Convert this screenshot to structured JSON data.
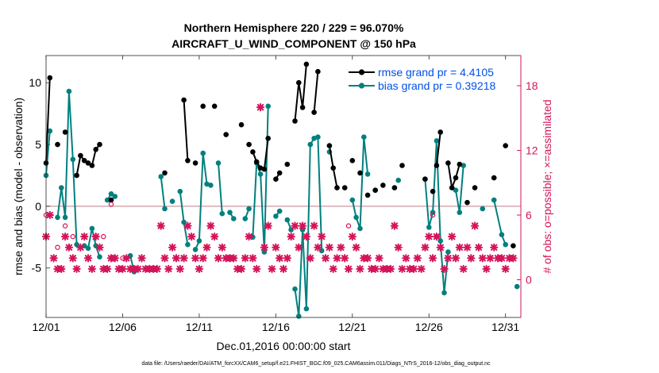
{
  "chart_data": {
    "type": "line",
    "title": "Northern Hemisphere 220 / 229 = 96.070%",
    "subtitle": "AIRCRAFT_U_WIND_COMPONENT @ 150 hPa",
    "xlabel": "Dec.01,2016 00:00:00 start",
    "ylabel": "rmse and bias (model - observation)",
    "y2label": "# of obs: o=possible; ×=assimilated",
    "footer": "data file: /Users/raeder/DAI/ATM_forcXX/CAM6_setup/f.e21.FHIST_BGC.f09_025.CAM6assim.011/Diags_NTrS_2016-12/obs_diag_output.nc",
    "xlim": [
      1,
      32
    ],
    "ylim": [
      -9,
      12.2
    ],
    "y2lim": [
      -3.5,
      20.8
    ],
    "x_ticks": [
      1,
      6,
      11,
      16,
      21,
      26,
      31
    ],
    "x_tick_labels": [
      "12/01",
      "12/06",
      "12/11",
      "12/16",
      "12/21",
      "12/26",
      "12/31"
    ],
    "y_ticks": [
      -5,
      0,
      5,
      10
    ],
    "y2_ticks": [
      0,
      6,
      12,
      18
    ],
    "zero_line": 0,
    "grid": false,
    "legend_position": "top-right",
    "colors": {
      "rmse": "#000000",
      "bias": "#00807f",
      "obs": "#d4145a",
      "zero": "#d4aab0",
      "legend_text": "#0050e8"
    },
    "series": [
      {
        "name": "rmse grand pr = 4.4105",
        "segments": [
          [
            [
              1.0,
              3.5
            ],
            [
              1.25,
              10.4
            ]
          ],
          [
            [
              1.75,
              5.0
            ]
          ],
          [
            [
              2.25,
              6.0
            ]
          ],
          [
            [
              3.0,
              2.5
            ],
            [
              3.25,
              4.1
            ],
            [
              3.5,
              3.7
            ],
            [
              3.75,
              3.5
            ],
            [
              4.0,
              3.3
            ],
            [
              4.25,
              4.6
            ],
            [
              4.5,
              5.0
            ]
          ],
          [
            [
              5.25,
              0.5
            ]
          ],
          [
            [
              8.75,
              2.7
            ]
          ],
          [
            [
              10.0,
              8.6
            ],
            [
              10.25,
              3.7
            ]
          ],
          [
            [
              10.75,
              3.5
            ]
          ],
          [
            [
              11.25,
              8.1
            ]
          ],
          [
            [
              12.0,
              8.1
            ]
          ],
          [
            [
              12.75,
              5.8
            ]
          ],
          [
            [
              13.75,
              6.6
            ]
          ],
          [
            [
              14.25,
              5.0
            ]
          ],
          [
            [
              14.5,
              4.4
            ],
            [
              14.75,
              3.6
            ],
            [
              15.0,
              3.1
            ],
            [
              15.25,
              3.0
            ],
            [
              15.5,
              5.5
            ]
          ],
          [
            [
              16.0,
              2.2
            ],
            [
              16.25,
              2.7
            ]
          ],
          [
            [
              16.75,
              3.4
            ]
          ],
          [
            [
              17.25,
              6.9
            ],
            [
              17.5,
              10.0
            ],
            [
              17.75,
              8.0
            ],
            [
              18.0,
              11.5
            ]
          ],
          [
            [
              18.5,
              7.6
            ],
            [
              18.75,
              10.9
            ]
          ],
          [
            [
              19.5,
              4.9
            ],
            [
              19.75,
              3.1
            ],
            [
              20.0,
              1.5
            ]
          ],
          [
            [
              20.5,
              1.5
            ]
          ],
          [
            [
              21.0,
              3.7
            ]
          ],
          [
            [
              21.5,
              2.7
            ]
          ],
          [
            [
              22.0,
              0.9
            ]
          ],
          [
            [
              22.5,
              1.3
            ]
          ],
          [
            [
              23.0,
              1.7
            ]
          ],
          [
            [
              23.75,
              1.5
            ]
          ],
          [
            [
              24.25,
              3.3
            ]
          ],
          [
            [
              25.75,
              2.2
            ]
          ],
          [
            [
              26.25,
              1.2
            ]
          ],
          [
            [
              26.5,
              3.3
            ],
            [
              26.75,
              6.0
            ]
          ],
          [
            [
              27.25,
              3.5
            ],
            [
              27.5,
              1.5
            ],
            [
              27.75,
              2.3
            ],
            [
              28.0,
              3.4
            ]
          ],
          [
            [
              28.5,
              0.3
            ]
          ],
          [
            [
              29.0,
              1.5
            ]
          ],
          [
            [
              30.25,
              2.3
            ]
          ],
          [
            [
              31.0,
              4.9
            ]
          ],
          [
            [
              31.5,
              -3.2
            ]
          ]
        ]
      },
      {
        "name": "bias grand pr = 0.39218",
        "segments": [
          [
            [
              1.0,
              2.5
            ],
            [
              1.25,
              6.1
            ]
          ],
          [
            [
              1.75,
              -0.9
            ],
            [
              2.0,
              1.5
            ],
            [
              2.25,
              -0.9
            ],
            [
              2.5,
              9.3
            ],
            [
              2.75,
              3.8
            ],
            [
              3.0,
              -3.1
            ]
          ],
          [
            [
              3.5,
              -3.2
            ],
            [
              3.75,
              -3.4
            ],
            [
              4.0,
              -1.8
            ],
            [
              4.25,
              -3.2
            ],
            [
              4.5,
              -4.1
            ]
          ],
          [
            [
              5.0,
              0.5
            ],
            [
              5.25,
              1.0
            ],
            [
              5.5,
              0.8
            ]
          ],
          [
            [
              6.5,
              -4.0
            ],
            [
              6.75,
              -5.3
            ]
          ],
          [
            [
              8.5,
              2.4
            ],
            [
              8.75,
              -0.2
            ]
          ],
          [
            [
              9.25,
              0.4
            ]
          ],
          [
            [
              9.75,
              1.2
            ],
            [
              10.0,
              -1.3
            ],
            [
              10.25,
              -3.1
            ]
          ],
          [
            [
              10.75,
              -3.5
            ],
            [
              11.0,
              -2.8
            ],
            [
              11.25,
              4.3
            ],
            [
              11.5,
              1.8
            ],
            [
              11.75,
              1.7
            ]
          ],
          [
            [
              12.25,
              3.5
            ],
            [
              12.5,
              -0.6
            ]
          ],
          [
            [
              13.0,
              -0.5
            ],
            [
              13.25,
              -1.0
            ]
          ],
          [
            [
              14.0,
              -1.0
            ],
            [
              14.25,
              -0.2
            ]
          ],
          [
            [
              14.5,
              -2.5
            ],
            [
              14.75,
              3.5
            ],
            [
              15.0,
              2.6
            ],
            [
              15.25,
              -3.7
            ],
            [
              15.5,
              8.1
            ]
          ],
          [
            [
              16.0,
              -0.8
            ],
            [
              16.25,
              -0.4
            ]
          ],
          [
            [
              16.75,
              -1.1
            ],
            [
              17.0,
              -1.9
            ]
          ],
          [
            [
              17.25,
              -6.7
            ],
            [
              17.5,
              -8.9
            ],
            [
              17.75,
              -1.9
            ],
            [
              18.0,
              -8.3
            ],
            [
              18.25,
              5.0
            ],
            [
              18.5,
              5.5
            ],
            [
              18.75,
              5.6
            ],
            [
              19.0,
              -3.6
            ]
          ],
          [
            [
              19.5,
              4.4
            ]
          ],
          [
            [
              21.0,
              0.5
            ],
            [
              21.25,
              -0.9
            ],
            [
              21.5,
              -1.8
            ],
            [
              21.75,
              5.6
            ],
            [
              22.0,
              2.6
            ]
          ],
          [
            [
              22.5,
              1.3
            ]
          ],
          [
            [
              24.0,
              2.1
            ]
          ],
          [
            [
              25.75,
              2.2
            ],
            [
              26.0,
              -1.7
            ],
            [
              26.25,
              -0.5
            ],
            [
              26.5,
              5.3
            ],
            [
              26.75,
              -2.8
            ],
            [
              27.0,
              -7.0
            ],
            [
              27.25,
              -3.7
            ]
          ],
          [
            [
              27.75,
              1.3
            ],
            [
              28.0,
              -0.5
            ],
            [
              28.25,
              3.3
            ]
          ],
          [
            [
              29.5,
              -0.2
            ]
          ],
          [
            [
              30.25,
              0.5
            ],
            [
              30.75,
              -2.3
            ],
            [
              31.0,
              -3.1
            ]
          ],
          [
            [
              31.75,
              -6.5
            ]
          ]
        ]
      }
    ],
    "obs_possible_o": [
      [
        1.0,
        6
      ],
      [
        1.75,
        3
      ],
      [
        2.25,
        5
      ],
      [
        2.75,
        4
      ],
      [
        4.75,
        4
      ],
      [
        5.25,
        7
      ],
      [
        6.0,
        2
      ],
      [
        7.0,
        1
      ],
      [
        20.75,
        5
      ],
      [
        26.25,
        6
      ],
      [
        26.5,
        4
      ]
    ],
    "obs_assimilated_x": [
      [
        1.0,
        4
      ],
      [
        1.25,
        6
      ],
      [
        1.5,
        2
      ],
      [
        1.75,
        1
      ],
      [
        2.0,
        1
      ],
      [
        2.25,
        4
      ],
      [
        2.5,
        3
      ],
      [
        2.75,
        2
      ],
      [
        3.0,
        1
      ],
      [
        3.25,
        3
      ],
      [
        3.5,
        4
      ],
      [
        3.75,
        2
      ],
      [
        4.0,
        1
      ],
      [
        4.25,
        4
      ],
      [
        4.5,
        3
      ],
      [
        4.75,
        1
      ],
      [
        5.0,
        1
      ],
      [
        5.25,
        2
      ],
      [
        5.5,
        2
      ],
      [
        5.75,
        1
      ],
      [
        6.0,
        1
      ],
      [
        6.25,
        2
      ],
      [
        6.5,
        1
      ],
      [
        6.75,
        1
      ],
      [
        7.0,
        1
      ],
      [
        7.25,
        2
      ],
      [
        7.5,
        1
      ],
      [
        7.75,
        1
      ],
      [
        8.0,
        1
      ],
      [
        8.25,
        1
      ],
      [
        8.5,
        5
      ],
      [
        8.75,
        2
      ],
      [
        9.0,
        1
      ],
      [
        9.25,
        3
      ],
      [
        9.5,
        2
      ],
      [
        9.75,
        1
      ],
      [
        10.0,
        2
      ],
      [
        10.25,
        5
      ],
      [
        10.5,
        4
      ],
      [
        10.75,
        2
      ],
      [
        11.0,
        1
      ],
      [
        11.25,
        2
      ],
      [
        11.5,
        3
      ],
      [
        11.75,
        5
      ],
      [
        12.0,
        4
      ],
      [
        12.25,
        2
      ],
      [
        12.5,
        3
      ],
      [
        12.75,
        2
      ],
      [
        13.0,
        2
      ],
      [
        13.25,
        2
      ],
      [
        13.5,
        1
      ],
      [
        13.75,
        1
      ],
      [
        14.0,
        2
      ],
      [
        14.25,
        4
      ],
      [
        14.5,
        2
      ],
      [
        14.75,
        1
      ],
      [
        15.0,
        16
      ],
      [
        15.25,
        3
      ],
      [
        15.5,
        5
      ],
      [
        15.75,
        1
      ],
      [
        16.0,
        3
      ],
      [
        16.25,
        2
      ],
      [
        16.5,
        1
      ],
      [
        16.75,
        2
      ],
      [
        17.0,
        4
      ],
      [
        17.25,
        5
      ],
      [
        17.5,
        3
      ],
      [
        17.75,
        5
      ],
      [
        18.0,
        4
      ],
      [
        18.25,
        2
      ],
      [
        18.5,
        5
      ],
      [
        18.75,
        3
      ],
      [
        19.0,
        4
      ],
      [
        19.25,
        2
      ],
      [
        19.5,
        3
      ],
      [
        19.75,
        1
      ],
      [
        20.0,
        2
      ],
      [
        20.25,
        3
      ],
      [
        20.5,
        2
      ],
      [
        20.75,
        1
      ],
      [
        21.0,
        4
      ],
      [
        21.25,
        3
      ],
      [
        21.5,
        1
      ],
      [
        21.75,
        2
      ],
      [
        22.0,
        2
      ],
      [
        22.25,
        1
      ],
      [
        22.5,
        1
      ],
      [
        22.75,
        2
      ],
      [
        23.0,
        1
      ],
      [
        23.25,
        1
      ],
      [
        23.5,
        1
      ],
      [
        23.75,
        5
      ],
      [
        24.0,
        3
      ],
      [
        24.25,
        1
      ],
      [
        24.5,
        2
      ],
      [
        24.75,
        1
      ],
      [
        25.0,
        1
      ],
      [
        25.25,
        2
      ],
      [
        25.5,
        1
      ],
      [
        25.75,
        3
      ],
      [
        26.0,
        4
      ],
      [
        26.25,
        2
      ],
      [
        26.5,
        4
      ],
      [
        26.75,
        3
      ],
      [
        27.0,
        1
      ],
      [
        27.25,
        2
      ],
      [
        27.5,
        4
      ],
      [
        27.75,
        2
      ],
      [
        28.0,
        3
      ],
      [
        28.25,
        1
      ],
      [
        28.5,
        3
      ],
      [
        28.75,
        2
      ],
      [
        29.0,
        5
      ],
      [
        29.25,
        3
      ],
      [
        29.5,
        2
      ],
      [
        29.75,
        1
      ],
      [
        30.0,
        2
      ],
      [
        30.25,
        3
      ],
      [
        30.5,
        2
      ],
      [
        30.75,
        2
      ],
      [
        31.0,
        1
      ],
      [
        31.25,
        2
      ],
      [
        31.5,
        2
      ]
    ]
  }
}
